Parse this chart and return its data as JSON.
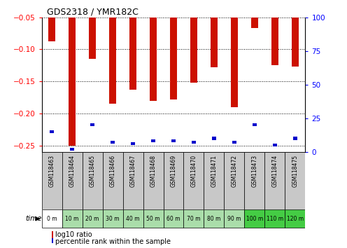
{
  "title": "GDS2318 / YMR182C",
  "samples": [
    "GSM118463",
    "GSM118464",
    "GSM118465",
    "GSM118466",
    "GSM118467",
    "GSM118468",
    "GSM118469",
    "GSM118470",
    "GSM118471",
    "GSM118472",
    "GSM118473",
    "GSM118474",
    "GSM118475"
  ],
  "time_labels": [
    "0 m",
    "10 m",
    "20 m",
    "30 m",
    "40 m",
    "50 m",
    "60 m",
    "70 m",
    "80 m",
    "90 m",
    "100 m",
    "110 m",
    "120 m"
  ],
  "log10_ratio": [
    -0.087,
    -0.251,
    -0.115,
    -0.185,
    -0.163,
    -0.18,
    -0.178,
    -0.152,
    -0.128,
    -0.19,
    -0.067,
    -0.125,
    -0.127
  ],
  "percentile_rank": [
    15,
    2,
    20,
    7,
    6,
    8,
    8,
    7,
    10,
    7,
    20,
    5,
    10
  ],
  "ylim_left": [
    -0.26,
    -0.05
  ],
  "ylim_right": [
    0,
    100
  ],
  "yticks_left": [
    -0.25,
    -0.2,
    -0.15,
    -0.1,
    -0.05
  ],
  "yticks_right": [
    0,
    25,
    50,
    75,
    100
  ],
  "bar_color_red": "#cc1100",
  "bar_color_blue": "#0000cc",
  "bg_color_gray": "#c8c8c8",
  "bg_color_green_light": "#aaddaa",
  "bg_color_green_dark": "#44cc44",
  "time_bg_colors": [
    "#ffffff",
    "#aaddaa",
    "#aaddaa",
    "#aaddaa",
    "#aaddaa",
    "#aaddaa",
    "#aaddaa",
    "#aaddaa",
    "#aaddaa",
    "#aaddaa",
    "#44cc44",
    "#44cc44",
    "#44cc44"
  ]
}
